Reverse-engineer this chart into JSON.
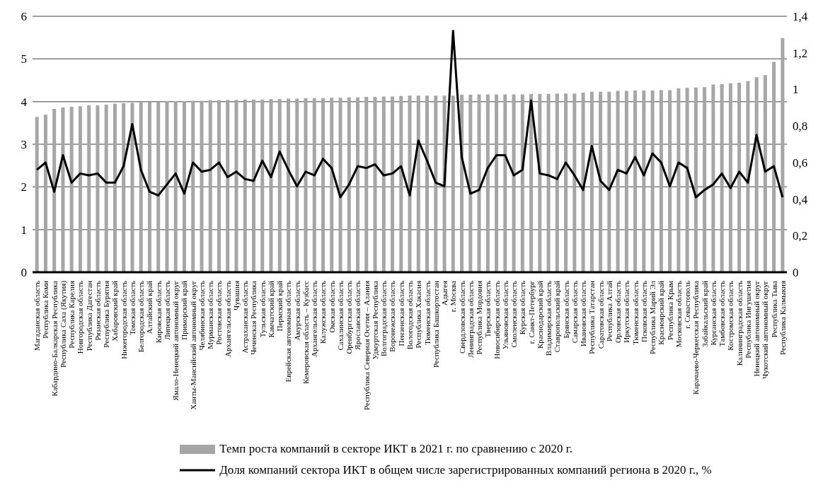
{
  "chart_data": {
    "type": "bar",
    "categories": [
      "Магаданская область",
      "Республика Коми",
      "Кабардино-Балкарская Республика",
      "Республика Саха (Якутия)",
      "Республика Карелия",
      "Новгородская область",
      "Республика Дагестан",
      "Рязанская область",
      "Республика Бурятия",
      "Хабаровский край",
      "Нижегородская область",
      "Томская область",
      "Белгородская область",
      "Алтайский край",
      "Кировская область",
      "Липецкая область",
      "Ямало-Ненецкий автономный округ",
      "Приморский край",
      "Ханты-Мансийский автономный округ",
      "Челябинская область",
      "Мурманская область",
      "Ростовская область",
      "Архангельская область",
      "Чувашия",
      "Астраханская область",
      "Чеченская Республика",
      "Тульская область",
      "Камчатский край",
      "Пермский край",
      "Еврейская автономная область",
      "Амурская область",
      "Кемеровская область – Кузбасс",
      "Архангельская область",
      "Калужская область",
      "Омская область",
      "Сахалинская область",
      "Оренбургская область",
      "Ярославская область",
      "Республика Северная Осетия – Алания",
      "Удмуртская Республика",
      "Волгоградская область",
      "Воронежская область",
      "Пензенская область",
      "Вологодская область",
      "Республика Хакасия",
      "Тюменская область",
      "Республика Башкортостан",
      "Адыгея",
      "г. Москва",
      "Свердловская область",
      "Ленинградская область",
      "Республика Мордовия",
      "Тверская область",
      "Новосибирская область",
      "Ульяновская область",
      "Смоленская область",
      "Курская область",
      "г. Санкт-Петербург",
      "Краснодарский край",
      "Владимирская область",
      "Ставропольский край",
      "Брянская область",
      "Самарская область",
      "Ивановская область",
      "Республика Татарстан",
      "Саратовская область",
      "Республика Алтай",
      "Орловская область",
      "Иркутская область",
      "Тюменская область",
      "Псковская область",
      "Республика Марий Эл",
      "Красноярский край",
      "Республика Крым",
      "Московская область",
      "г. Севастополь",
      "Карачаево-Черкесская Республика",
      "Забайкальский край",
      "Курганская область",
      "Тамбовская область",
      "Костромская область",
      "Калининградская область",
      "Республика Ингушетия",
      "Ненецкий автономный округ",
      "Чукотский автономный округ",
      "Республика Тыва",
      "Республика Калмыкия"
    ],
    "series": [
      {
        "name": "Темп роста компаний в секторе ИКТ в 2021 г. по сравнению с 2020 г.",
        "color": "#a6a6a6",
        "values": [
          3.64,
          3.69,
          3.83,
          3.86,
          3.88,
          3.89,
          3.91,
          3.91,
          3.93,
          3.95,
          3.96,
          3.97,
          3.98,
          4.0,
          4.0,
          4.01,
          4.01,
          4.01,
          4.02,
          4.02,
          4.03,
          4.03,
          4.04,
          4.04,
          4.05,
          4.05,
          4.05,
          4.06,
          4.06,
          4.07,
          4.07,
          4.08,
          4.08,
          4.08,
          4.09,
          4.09,
          4.1,
          4.1,
          4.11,
          4.11,
          4.12,
          4.12,
          4.13,
          4.14,
          4.14,
          4.14,
          4.14,
          4.14,
          4.14,
          4.16,
          4.16,
          4.17,
          4.17,
          4.17,
          4.17,
          4.17,
          4.17,
          4.18,
          4.18,
          4.18,
          4.19,
          4.19,
          4.19,
          4.21,
          4.23,
          4.23,
          4.23,
          4.25,
          4.25,
          4.26,
          4.26,
          4.26,
          4.27,
          4.27,
          4.31,
          4.32,
          4.33,
          4.34,
          4.4,
          4.41,
          4.43,
          4.44,
          4.48,
          4.57,
          4.62,
          4.93,
          5.49
        ]
      },
      {
        "type": "line",
        "axis": "y2",
        "name": "Доля компаний сектора ИКТ в общем числе зарегистрированных компаний региона в 2020 г., %",
        "color": "#000000",
        "values": [
          0.56,
          0.6,
          0.44,
          0.64,
          0.49,
          0.54,
          0.53,
          0.54,
          0.49,
          0.49,
          0.58,
          0.81,
          0.56,
          0.44,
          0.42,
          0.48,
          0.54,
          0.43,
          0.6,
          0.55,
          0.56,
          0.6,
          0.52,
          0.55,
          0.51,
          0.5,
          0.61,
          0.52,
          0.66,
          0.56,
          0.47,
          0.55,
          0.53,
          0.62,
          0.57,
          0.41,
          0.48,
          0.58,
          0.57,
          0.59,
          0.53,
          0.54,
          0.58,
          0.42,
          0.72,
          0.61,
          0.49,
          0.47,
          1.32,
          0.63,
          0.43,
          0.45,
          0.57,
          0.64,
          0.64,
          0.53,
          0.56,
          0.94,
          0.54,
          0.53,
          0.51,
          0.6,
          0.53,
          0.45,
          0.69,
          0.5,
          0.45,
          0.56,
          0.54,
          0.63,
          0.53,
          0.65,
          0.6,
          0.47,
          0.6,
          0.57,
          0.41,
          0.45,
          0.48,
          0.54,
          0.46,
          0.55,
          0.49,
          0.75,
          0.55,
          0.58,
          0.41
        ]
      }
    ],
    "ylim": [
      0,
      6
    ],
    "yticks": [
      0,
      1,
      2,
      3,
      4,
      5,
      6
    ],
    "y2lim": [
      0,
      1.4
    ],
    "y2ticks": [
      0,
      {
        "value": 0.2,
        "label": "0,2"
      },
      {
        "value": 0.4,
        "label": "0,4"
      },
      {
        "value": 0.6,
        "label": "0,6"
      },
      {
        "value": 0.8,
        "label": "0,8"
      },
      1,
      {
        "value": 1.2,
        "label": "1,2"
      },
      {
        "value": 1.4,
        "label": "1,4"
      }
    ],
    "grid": "y",
    "legend": "bottom",
    "marker": "none",
    "line_style": "solid"
  }
}
